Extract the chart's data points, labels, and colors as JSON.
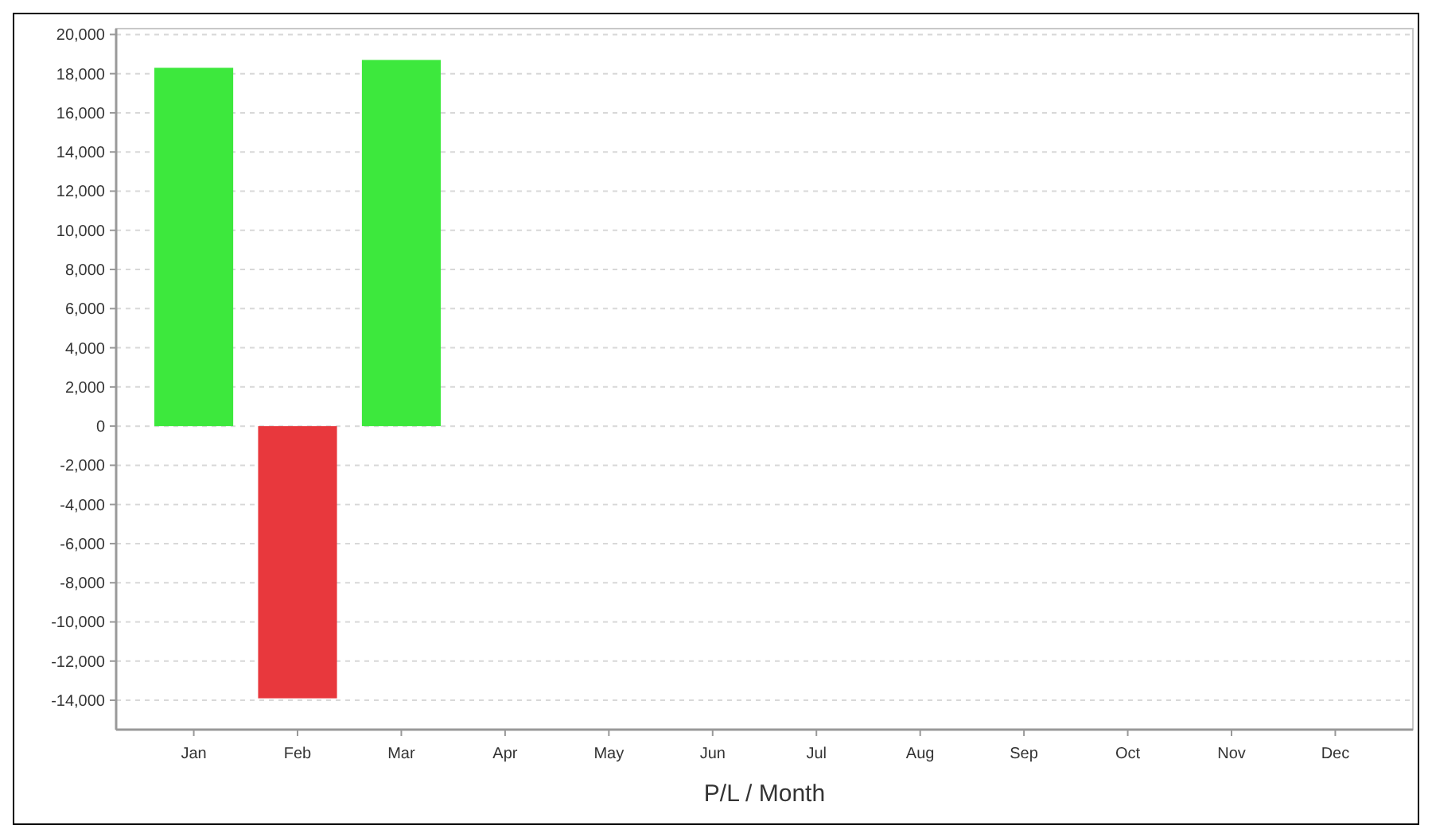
{
  "chart_data": {
    "type": "bar",
    "xlabel": "P/L / Month",
    "categories": [
      "Jan",
      "Feb",
      "Mar",
      "Apr",
      "May",
      "Jun",
      "Jul",
      "Aug",
      "Sep",
      "Oct",
      "Nov",
      "Dec"
    ],
    "values": [
      18300,
      -13900,
      18700,
      null,
      null,
      null,
      null,
      null,
      null,
      null,
      null,
      null
    ],
    "colors": [
      "#3de83d",
      "#e8383d",
      "#3de83d",
      null,
      null,
      null,
      null,
      null,
      null,
      null,
      null,
      null
    ],
    "ylim": [
      -15500,
      20300
    ],
    "yticks": [
      {
        "value": -14000,
        "label": "-14,000"
      },
      {
        "value": -12000,
        "label": "-12,000"
      },
      {
        "value": -10000,
        "label": "-10,000"
      },
      {
        "value": -8000,
        "label": "-8,000"
      },
      {
        "value": -6000,
        "label": "-6,000"
      },
      {
        "value": -4000,
        "label": "-4,000"
      },
      {
        "value": -2000,
        "label": "-2,000"
      },
      0,
      {
        "value": 2000,
        "label": "2,000"
      },
      {
        "value": 4000,
        "label": "4,000"
      },
      {
        "value": 6000,
        "label": "6,000"
      },
      {
        "value": 8000,
        "label": "8,000"
      },
      {
        "value": 10000,
        "label": "10,000"
      },
      {
        "value": 12000,
        "label": "12,000"
      },
      {
        "value": 14000,
        "label": "14,000"
      },
      {
        "value": 16000,
        "label": "16,000"
      },
      {
        "value": 18000,
        "label": "18,000"
      },
      {
        "value": 20000,
        "label": "20,000"
      }
    ],
    "grid": "y"
  }
}
